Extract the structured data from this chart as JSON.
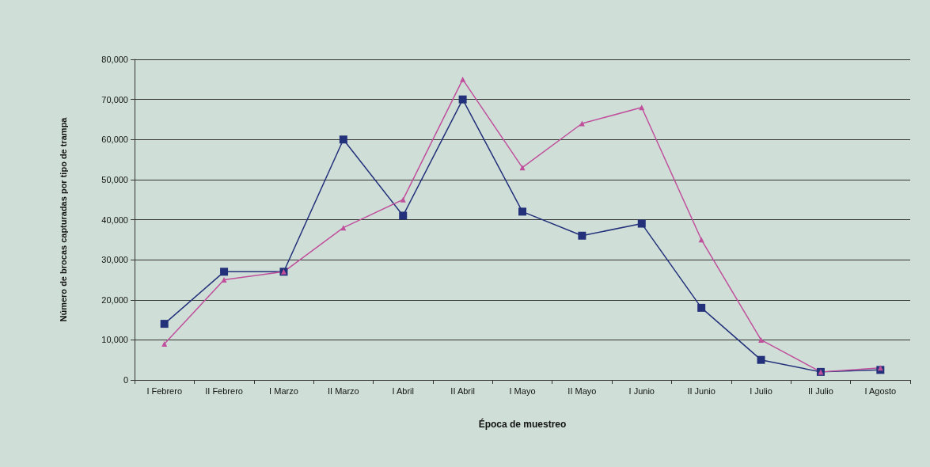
{
  "chart_data": {
    "type": "line",
    "xlabel": "Época de muestreo",
    "ylabel": "Número de brocas capturadas por tipo de trampa",
    "categories": [
      "I Febrero",
      "II Febrero",
      "I Marzo",
      "II Marzo",
      "I Abril",
      "II Abril",
      "I Mayo",
      "II Mayo",
      "I Junio",
      "II Junio",
      "I Julio",
      "II Julio",
      "I Agosto"
    ],
    "series": [
      {
        "color": "#23307a",
        "marker": "square",
        "values": [
          14000,
          27000,
          27000,
          60000,
          41000,
          70000,
          42000,
          36000,
          39000,
          18000,
          5000,
          2000,
          2500
        ]
      },
      {
        "color": "#c0509c",
        "marker": "triangle",
        "values": [
          9000,
          25000,
          27000,
          38000,
          45000,
          75000,
          53000,
          64000,
          68000,
          35000,
          10000,
          2000,
          3000
        ]
      }
    ],
    "ylim": [
      0,
      80000
    ],
    "yticks": [
      0,
      {
        "value": 10000,
        "label": "10,000"
      },
      {
        "value": 20000,
        "label": "20,000"
      },
      {
        "value": 30000,
        "label": "30,000"
      },
      {
        "value": 40000,
        "label": "40,000"
      },
      {
        "value": 50000,
        "label": "50,000"
      },
      {
        "value": 60000,
        "label": "60,000"
      },
      {
        "value": 70000,
        "label": "70,000"
      },
      {
        "value": 80000,
        "label": "80,000"
      }
    ],
    "grid": "y",
    "line_style": "solid"
  }
}
